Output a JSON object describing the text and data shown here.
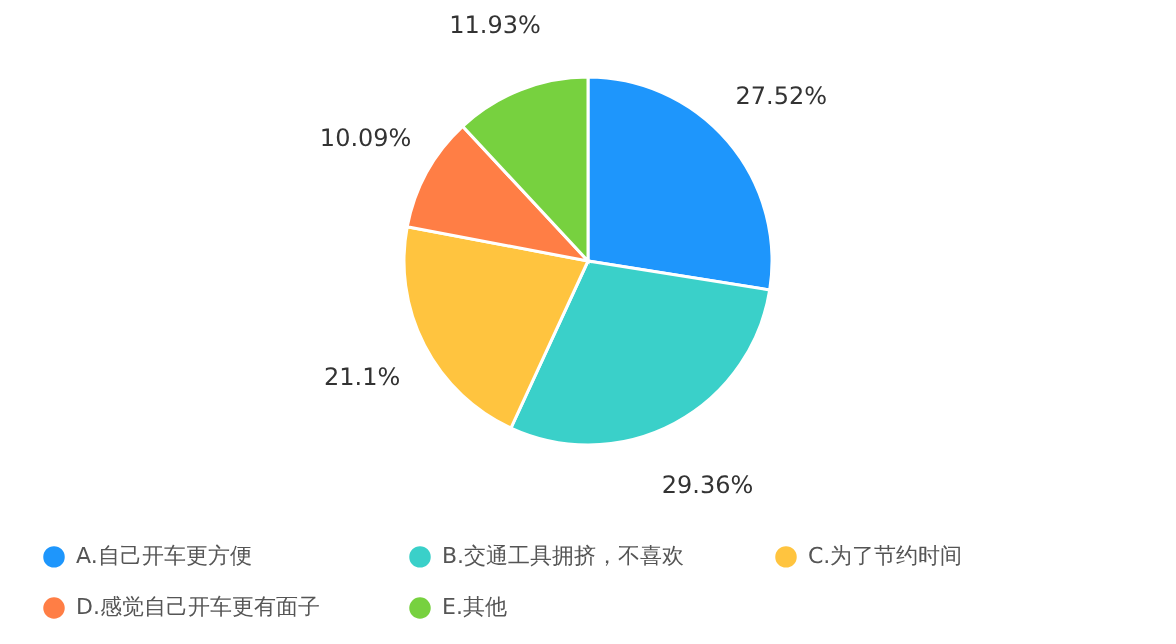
{
  "chart_data": {
    "type": "pie",
    "categories": [
      "A.自己开车更方便",
      "B.交通工具拥挤，不喜欢",
      "C.为了节约时间",
      "D.感觉自己开车更有面子",
      "E.其他"
    ],
    "values": [
      27.52,
      29.36,
      21.1,
      10.09,
      11.93
    ],
    "colors": [
      "#1e96fc",
      "#3ad0c9",
      "#ffc43f",
      "#ff7e45",
      "#77d13f"
    ],
    "value_labels": [
      "27.52%",
      "29.36%",
      "21.1%",
      "10.09%",
      "11.93%"
    ],
    "legend": "bottom"
  }
}
